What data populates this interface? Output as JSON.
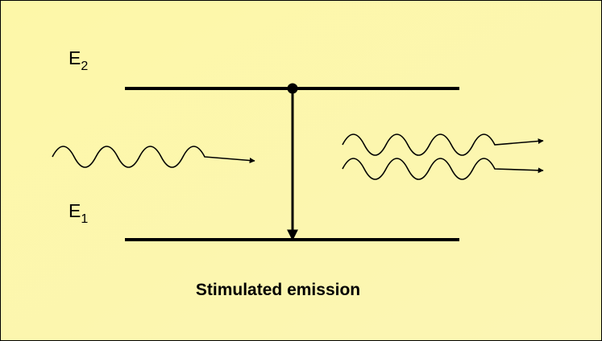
{
  "levels": [
    {
      "label": "E",
      "subscript": "2"
    },
    {
      "label": "E",
      "subscript": "1"
    }
  ],
  "caption": "Stimulated emission"
}
